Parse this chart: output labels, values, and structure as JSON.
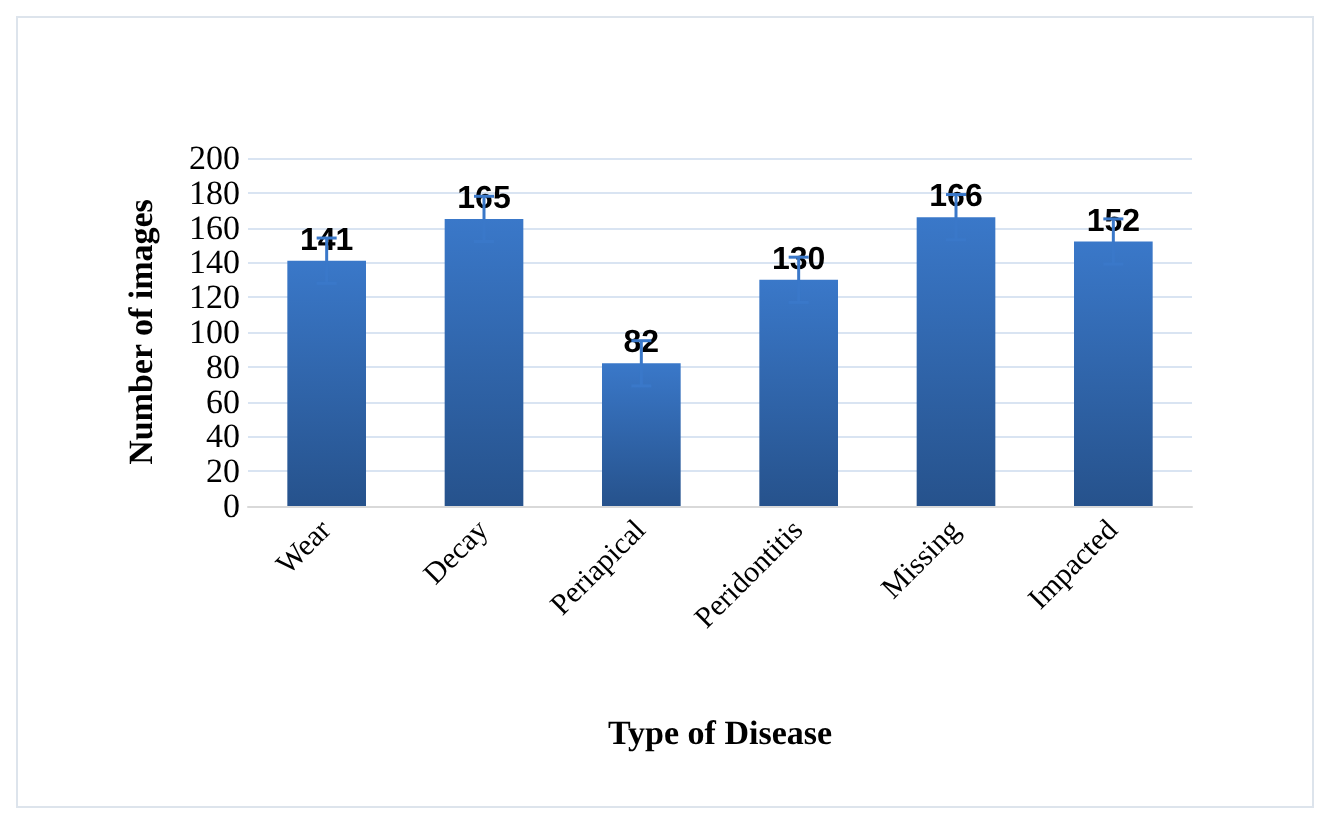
{
  "chart_data": {
    "type": "bar",
    "xlabel": "Type of Disease",
    "ylabel": "Number of images",
    "categories": [
      "Wear",
      "Decay",
      "Periapical",
      "Peridontitis",
      "Missing",
      "Impacted"
    ],
    "values": [
      141,
      165,
      82,
      130,
      166,
      152
    ],
    "errors": [
      13,
      13,
      13,
      13,
      13,
      13
    ],
    "color": "#3a78c9",
    "ylim": [
      0,
      200
    ],
    "yticks": [
      0,
      20,
      40,
      60,
      80,
      100,
      120,
      140,
      160,
      180,
      200
    ],
    "grid": "y",
    "data_labels": true
  }
}
